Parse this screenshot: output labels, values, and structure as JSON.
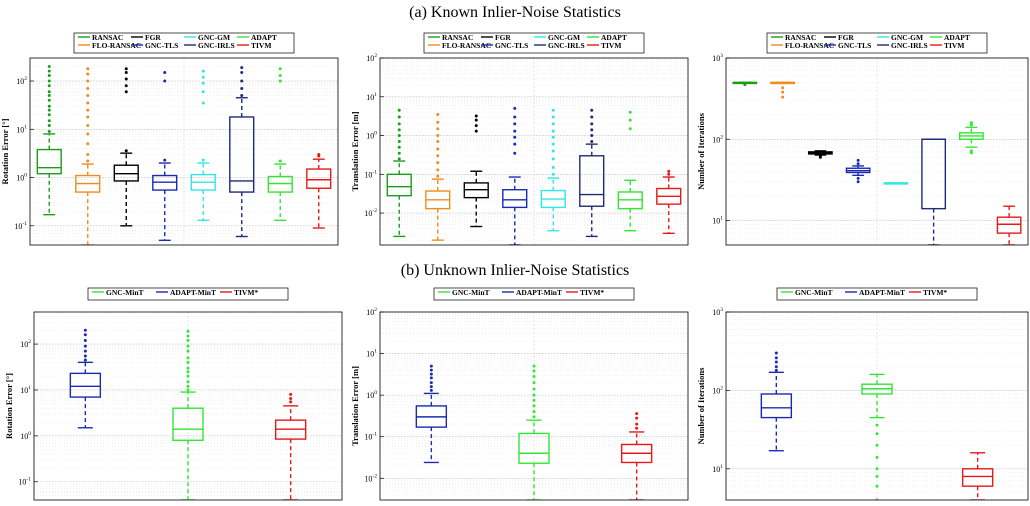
{
  "row_titles": {
    "a": "(a) Known Inlier-Noise Statistics",
    "b": "(b) Unknown Inlier-Noise Statistics"
  },
  "colors": {
    "RANSAC": "#1a9e1a",
    "FGR": "#000000",
    "GNC-GM": "#33e6e6",
    "ADAPT": "#33e633",
    "FLO-RANSAC": "#f08c1e",
    "GNC-TLS": "#1a2bb3",
    "GNC-IRLS": "#1f2a7a",
    "TIVM": "#e61a1a",
    "GNC-MinT": "#33e633",
    "ADAPT-MinT": "#1a2bb3",
    "TIVM*": "#e61a1a"
  },
  "chart_data": [
    {
      "type": "box",
      "panel": "a1",
      "ylabel": "Rotation Error [°]",
      "yscale": "log",
      "ylim": [
        0.04,
        300
      ],
      "yticks": [
        {
          "v": 0.1,
          "label": "10"
        },
        {
          "v": 1,
          "label": "10"
        },
        {
          "v": 10,
          "label": "10"
        },
        {
          "v": 100,
          "label": "10"
        }
      ],
      "ytick_exps": [
        "-1",
        "0",
        "1",
        "2"
      ],
      "legend": {
        "rows": [
          [
            "RANSAC",
            "FGR",
            "GNC-GM",
            "ADAPT"
          ],
          [
            "FLO-RANSAC",
            "GNC-TLS",
            "GNC-IRLS",
            "TIVM"
          ]
        ]
      },
      "boxes": [
        {
          "name": "RANSAC",
          "wlo": 0.17,
          "q1": 1.2,
          "med": 1.6,
          "q3": 3.8,
          "whi": 8,
          "outliers": [
            9,
            12,
            15,
            20,
            25,
            30,
            40,
            50,
            60,
            80,
            100,
            130,
            160,
            200
          ]
        },
        {
          "name": "FLO-RANSAC",
          "wlo": 0.04,
          "q1": 0.5,
          "med": 0.75,
          "q3": 1.1,
          "whi": 1.9,
          "outliers": [
            2.2,
            3,
            5,
            8,
            12,
            18,
            25,
            35,
            50,
            70,
            100,
            140,
            180
          ]
        },
        {
          "name": "FGR",
          "wlo": 0.1,
          "q1": 0.85,
          "med": 1.2,
          "q3": 1.8,
          "whi": 3.2,
          "outliers": [
            3.6,
            60,
            80,
            110,
            150,
            180
          ]
        },
        {
          "name": "GNC-TLS",
          "wlo": 0.05,
          "q1": 0.55,
          "med": 0.8,
          "q3": 1.1,
          "whi": 2,
          "outliers": [
            2.3,
            100,
            150
          ]
        },
        {
          "name": "GNC-GM",
          "wlo": 0.13,
          "q1": 0.55,
          "med": 0.8,
          "q3": 1.15,
          "whi": 2,
          "outliers": [
            2.3,
            35,
            60,
            90,
            120,
            160
          ]
        },
        {
          "name": "GNC-IRLS",
          "wlo": 0.06,
          "q1": 0.5,
          "med": 0.85,
          "q3": 18,
          "whi": 45,
          "outliers": [
            50,
            70,
            100,
            150,
            190
          ]
        },
        {
          "name": "ADAPT",
          "wlo": 0.13,
          "q1": 0.5,
          "med": 0.75,
          "q3": 1.05,
          "whi": 1.9,
          "outliers": [
            2.2,
            100,
            130,
            180
          ]
        },
        {
          "name": "TIVM",
          "wlo": 0.09,
          "q1": 0.6,
          "med": 0.9,
          "q3": 1.5,
          "whi": 2.4,
          "outliers": [
            2.8,
            3
          ]
        }
      ]
    },
    {
      "type": "box",
      "panel": "a2",
      "ylabel": "Translation Error [m]",
      "yscale": "log",
      "ylim": [
        0.0015,
        100
      ],
      "yticks": [
        {
          "v": 0.01,
          "label": "10"
        },
        {
          "v": 0.1,
          "label": "10"
        },
        {
          "v": 1,
          "label": "10"
        },
        {
          "v": 10,
          "label": "10"
        },
        {
          "v": 100,
          "label": "10"
        }
      ],
      "ytick_exps": [
        "-2",
        "-1",
        "0",
        "1",
        "2"
      ],
      "legend": {
        "rows": [
          [
            "RANSAC",
            "FGR",
            "GNC-GM",
            "ADAPT"
          ],
          [
            "FLO-RANSAC",
            "GNC-TLS",
            "GNC-IRLS",
            "TIVM"
          ]
        ]
      },
      "boxes": [
        {
          "name": "RANSAC",
          "wlo": 0.0025,
          "q1": 0.028,
          "med": 0.048,
          "q3": 0.1,
          "whi": 0.22,
          "outliers": [
            0.25,
            0.35,
            0.5,
            0.7,
            1,
            1.4,
            2,
            3,
            4.5
          ]
        },
        {
          "name": "FLO-RANSAC",
          "wlo": 0.002,
          "q1": 0.013,
          "med": 0.022,
          "q3": 0.037,
          "whi": 0.075,
          "outliers": [
            0.09,
            0.13,
            0.2,
            0.3,
            0.45,
            0.7,
            1,
            1.5,
            2.2,
            3.5
          ]
        },
        {
          "name": "FGR",
          "wlo": 0.0045,
          "q1": 0.025,
          "med": 0.04,
          "q3": 0.06,
          "whi": 0.12,
          "outliers": [
            1.3,
            1.8,
            2.5,
            3.2
          ]
        },
        {
          "name": "GNC-TLS",
          "wlo": 0.0015,
          "q1": 0.014,
          "med": 0.022,
          "q3": 0.04,
          "whi": 0.085,
          "outliers": [
            0.35,
            0.6,
            0.9,
            1.3,
            2,
            3,
            5
          ]
        },
        {
          "name": "GNC-GM",
          "wlo": 0.0035,
          "q1": 0.014,
          "med": 0.023,
          "q3": 0.038,
          "whi": 0.08,
          "outliers": [
            0.1,
            0.15,
            0.25,
            0.4,
            0.6,
            0.9,
            1.3,
            2,
            3,
            4.5
          ]
        },
        {
          "name": "GNC-IRLS",
          "wlo": 0.0025,
          "q1": 0.015,
          "med": 0.03,
          "q3": 0.3,
          "whi": 0.6,
          "outliers": [
            0.7,
            1,
            1.4,
            2,
            3,
            4.5
          ]
        },
        {
          "name": "ADAPT",
          "wlo": 0.0035,
          "q1": 0.013,
          "med": 0.022,
          "q3": 0.035,
          "whi": 0.07,
          "outliers": [
            1.5,
            2.5,
            4
          ]
        },
        {
          "name": "TIVM",
          "wlo": 0.003,
          "q1": 0.017,
          "med": 0.027,
          "q3": 0.043,
          "whi": 0.085,
          "outliers": [
            0.1,
            0.12
          ]
        }
      ]
    },
    {
      "type": "box",
      "panel": "a3",
      "ylabel": "Number of Iterations",
      "yscale": "log",
      "ylim": [
        5,
        1000
      ],
      "yticks": [
        {
          "v": 10,
          "label": "10"
        },
        {
          "v": 100,
          "label": "10"
        },
        {
          "v": 1000,
          "label": "10"
        }
      ],
      "ytick_exps": [
        "1",
        "2",
        "3"
      ],
      "legend": {
        "rows": [
          [
            "RANSAC",
            "FGR",
            "GNC-GM",
            "ADAPT"
          ],
          [
            "FLO-RANSAC",
            "GNC-TLS",
            "GNC-IRLS",
            "TIVM"
          ]
        ]
      },
      "boxes": [
        {
          "name": "RANSAC",
          "wlo": 500,
          "q1": 500,
          "med": 500,
          "q3": 500,
          "whi": 500,
          "outliers": [
            470,
            485
          ]
        },
        {
          "name": "FLO-RANSAC",
          "wlo": 500,
          "q1": 500,
          "med": 500,
          "q3": 500,
          "whi": 500,
          "outliers": [
            330,
            380,
            430
          ]
        },
        {
          "name": "FGR",
          "wlo": 64,
          "q1": 66,
          "med": 68,
          "q3": 70,
          "whi": 72,
          "outliers": [
            60,
            62
          ]
        },
        {
          "name": "GNC-TLS",
          "wlo": 36,
          "q1": 39,
          "med": 41,
          "q3": 44,
          "whi": 47,
          "outliers": [
            30,
            33,
            50,
            55
          ]
        },
        {
          "name": "GNC-GM",
          "wlo": 29,
          "q1": 29,
          "med": 29,
          "q3": 29,
          "whi": 29,
          "outliers": []
        },
        {
          "name": "GNC-IRLS",
          "wlo": 5,
          "q1": 14,
          "med": 100,
          "q3": 100,
          "whi": 100,
          "outliers": []
        },
        {
          "name": "ADAPT",
          "wlo": 80,
          "q1": 100,
          "med": 110,
          "q3": 120,
          "whi": 140,
          "outliers": [
            68,
            72,
            150,
            160
          ]
        },
        {
          "name": "TIVM",
          "wlo": 5,
          "q1": 7,
          "med": 9,
          "q3": 11,
          "whi": 15,
          "outliers": []
        }
      ]
    },
    {
      "type": "box",
      "panel": "b1",
      "ylabel": "Rotation Error [°]",
      "yscale": "log",
      "ylim": [
        0.04,
        500
      ],
      "yticks": [
        {
          "v": 0.1,
          "label": "10"
        },
        {
          "v": 1,
          "label": "10"
        },
        {
          "v": 10,
          "label": "10"
        },
        {
          "v": 100,
          "label": "10"
        }
      ],
      "ytick_exps": [
        "-1",
        "0",
        "1",
        "2"
      ],
      "legend": {
        "rows": [
          [
            "GNC-MinT",
            "ADAPT-MinT",
            "TIVM*"
          ]
        ]
      },
      "boxes": [
        {
          "name": "ADAPT-MinT",
          "wlo": 1.5,
          "q1": 7,
          "med": 12,
          "q3": 23,
          "whi": 40,
          "outliers": [
            45,
            55,
            70,
            90,
            120,
            160,
            200
          ]
        },
        {
          "name": "GNC-MinT",
          "wlo": 0.04,
          "q1": 0.8,
          "med": 1.4,
          "q3": 4,
          "whi": 9,
          "outliers": [
            10,
            12,
            15,
            20,
            25,
            30,
            40,
            50,
            70,
            90,
            120,
            150,
            190
          ]
        },
        {
          "name": "TIVM*",
          "wlo": 0.04,
          "q1": 0.85,
          "med": 1.4,
          "q3": 2.2,
          "whi": 4.5,
          "outliers": [
            5.5,
            6.5,
            8
          ]
        }
      ]
    },
    {
      "type": "box",
      "panel": "b2",
      "ylabel": "Translation Error [m]",
      "yscale": "log",
      "ylim": [
        0.003,
        100
      ],
      "yticks": [
        {
          "v": 0.01,
          "label": "10"
        },
        {
          "v": 0.1,
          "label": "10"
        },
        {
          "v": 1,
          "label": "10"
        },
        {
          "v": 10,
          "label": "10"
        },
        {
          "v": 100,
          "label": "10"
        }
      ],
      "ytick_exps": [
        "-2",
        "-1",
        "0",
        "1",
        "2"
      ],
      "legend": {
        "rows": [
          [
            "GNC-MinT",
            "ADAPT-MinT",
            "TIVM*"
          ]
        ]
      },
      "boxes": [
        {
          "name": "ADAPT-MinT",
          "wlo": 0.024,
          "q1": 0.17,
          "med": 0.3,
          "q3": 0.55,
          "whi": 1.1,
          "outliers": [
            1.3,
            1.6,
            2,
            2.6,
            3.2,
            4,
            5
          ]
        },
        {
          "name": "GNC-MinT",
          "wlo": 0.003,
          "q1": 0.023,
          "med": 0.04,
          "q3": 0.12,
          "whi": 0.25,
          "outliers": [
            0.3,
            0.4,
            0.55,
            0.75,
            1,
            1.4,
            2,
            2.8,
            3.8,
            5
          ]
        },
        {
          "name": "TIVM*",
          "wlo": 0.003,
          "q1": 0.024,
          "med": 0.04,
          "q3": 0.065,
          "whi": 0.13,
          "outliers": [
            0.16,
            0.2,
            0.28,
            0.36
          ]
        }
      ]
    },
    {
      "type": "box",
      "panel": "b3",
      "ylabel": "Number of Iterations",
      "yscale": "log",
      "ylim": [
        4,
        1000
      ],
      "yticks": [
        {
          "v": 10,
          "label": "10"
        },
        {
          "v": 100,
          "label": "10"
        },
        {
          "v": 1000,
          "label": "10"
        }
      ],
      "ytick_exps": [
        "1",
        "2",
        "3"
      ],
      "legend": {
        "rows": [
          [
            "GNC-MinT",
            "ADAPT-MinT",
            "TIVM*"
          ]
        ]
      },
      "boxes": [
        {
          "name": "ADAPT-MinT",
          "wlo": 17,
          "q1": 45,
          "med": 60,
          "q3": 90,
          "whi": 170,
          "outliers": [
            180,
            200,
            230,
            260,
            300
          ]
        },
        {
          "name": "GNC-MinT",
          "wlo": 45,
          "q1": 90,
          "med": 105,
          "q3": 120,
          "whi": 160,
          "outliers": [
            4,
            6,
            8,
            10,
            14,
            20,
            28,
            36
          ]
        },
        {
          "name": "TIVM*",
          "wlo": 4,
          "q1": 6,
          "med": 8,
          "q3": 10,
          "whi": 16,
          "outliers": []
        }
      ]
    }
  ]
}
